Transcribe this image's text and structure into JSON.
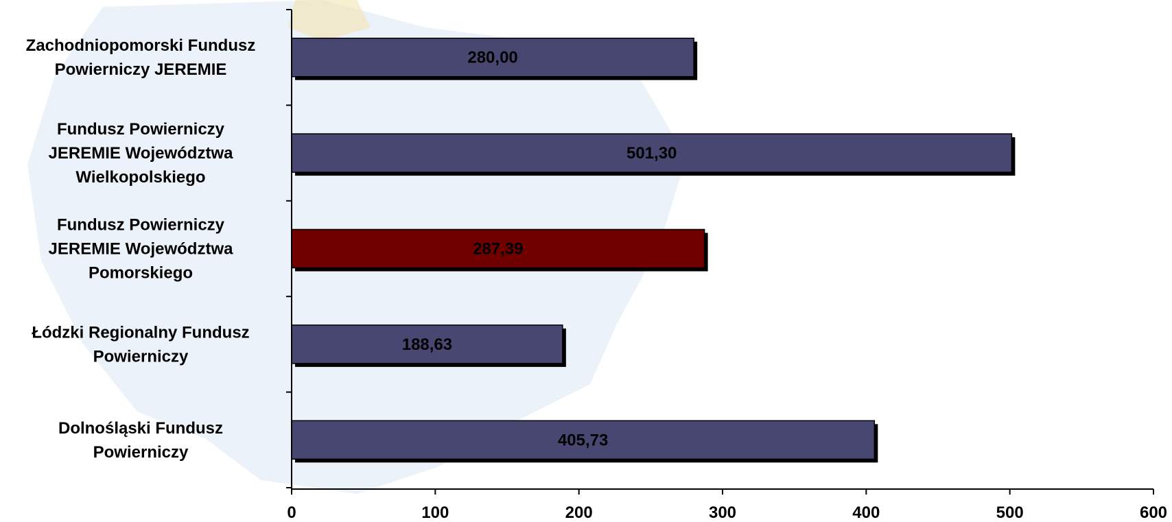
{
  "chart_data": {
    "type": "bar",
    "orientation": "horizontal",
    "categories": [
      [
        "Zachodniopomorski Fundusz",
        "Powierniczy JEREMIE"
      ],
      [
        "Fundusz Powierniczy",
        "JEREMIE Województwa",
        "Wielkopolskiego"
      ],
      [
        "Fundusz Powierniczy",
        "JEREMIE Województwa",
        "Pomorskiego"
      ],
      [
        "Łódzki Regionalny Fundusz",
        "Powierniczy"
      ],
      [
        "Dolnośląski Fundusz",
        "Powierniczy"
      ]
    ],
    "values": [
      280.0,
      501.3,
      287.39,
      188.63,
      405.73
    ],
    "data_labels": [
      "280,00",
      "501,30",
      "287,39",
      "188,63",
      "405,73"
    ],
    "bar_colors": [
      "#474771",
      "#474771",
      "#700000",
      "#474771",
      "#474771"
    ],
    "xlim": [
      0,
      600
    ],
    "xticks": [
      0,
      100,
      200,
      300,
      400,
      500,
      600
    ],
    "title": "",
    "xlabel": "",
    "ylabel": "",
    "grid": false,
    "legend": "none"
  },
  "colors": {
    "default_bar": "#474771",
    "highlight_bar": "#700000",
    "shadow": "#000000",
    "background_map": "#dbe7f5"
  }
}
